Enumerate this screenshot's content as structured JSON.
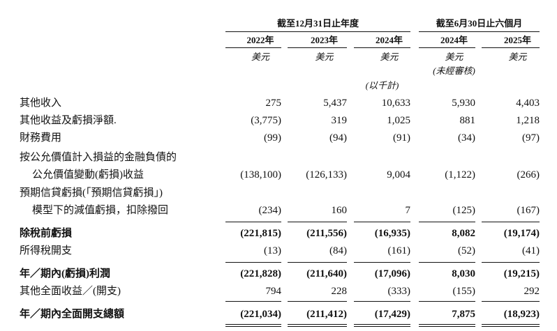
{
  "header": {
    "groups": [
      "截至12月31日止年度",
      "截至6月30日止六個月"
    ],
    "years": [
      "2022年",
      "2023年",
      "2024年",
      "2024年",
      "2025年"
    ],
    "units": [
      "美元",
      "美元",
      "美元",
      "美元",
      "美元"
    ],
    "unaudited": "(未經審核)",
    "in_thousands": "(以千計)"
  },
  "table": {
    "rows": [
      {
        "label": [
          "其他收入"
        ],
        "values": [
          "275",
          "5,437",
          "10,633",
          "5,930",
          "4,403"
        ],
        "bold": false
      },
      {
        "label": [
          "其他收益及虧損淨額."
        ],
        "values": [
          "(3,775)",
          "319",
          "1,025",
          "881",
          "1,218"
        ],
        "bold": false
      },
      {
        "label": [
          "財務費用"
        ],
        "values": [
          "(99)",
          "(94)",
          "(91)",
          "(34)",
          "(97)"
        ],
        "bold": false
      },
      {
        "label": [
          "按公允價值計入損益的金融負債的",
          "公允價值變動(虧損)收益"
        ],
        "values": [
          "(138,100)",
          "(126,133)",
          "9,004",
          "(1,122)",
          "(266)"
        ],
        "bold": false
      },
      {
        "label": [
          "預期信貸虧損(「預期信貸虧損」)",
          "模型下的減值虧損，扣除撥回"
        ],
        "values": [
          "(234)",
          "160",
          "7",
          "(125)",
          "(167)"
        ],
        "bold": false
      },
      {
        "label": [
          "除稅前虧損"
        ],
        "values": [
          "(221,815)",
          "(211,556)",
          "(16,935)",
          "8,082",
          "(19,174)"
        ],
        "bold": true
      },
      {
        "label": [
          "所得稅開支"
        ],
        "values": [
          "(13)",
          "(84)",
          "(161)",
          "(52)",
          "(41)"
        ],
        "bold": false
      },
      {
        "label": [
          "年／期內(虧損)利潤"
        ],
        "values": [
          "(221,828)",
          "(211,640)",
          "(17,096)",
          "8,030",
          "(19,215)"
        ],
        "bold": true
      },
      {
        "label": [
          "其他全面收益／(開支)"
        ],
        "values": [
          "794",
          "228",
          "(333)",
          "(155)",
          "292"
        ],
        "bold": false
      },
      {
        "label": [
          "年／期內全面開支總額"
        ],
        "values": [
          "(221,034)",
          "(211,412)",
          "(17,429)",
          "7,875",
          "(18,923)"
        ],
        "bold": true
      }
    ]
  }
}
